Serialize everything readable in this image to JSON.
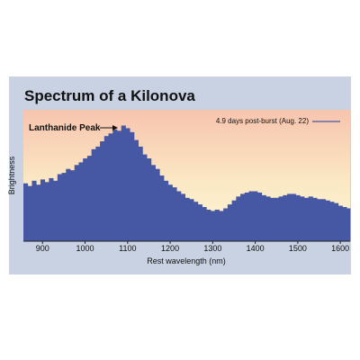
{
  "chart_data": {
    "type": "area",
    "title": "Spectrum of a Kilonova",
    "xlabel": "Rest wavelength (nm)",
    "ylabel": "Brightness",
    "annotation": "Lanthanide Peak",
    "xlim": [
      855,
      1623
    ],
    "xticks": [
      900,
      1000,
      1100,
      1200,
      1300,
      1400,
      1500,
      1600
    ],
    "ylim": [
      0,
      100
    ],
    "x": [
      860,
      870,
      880,
      890,
      900,
      910,
      920,
      930,
      940,
      950,
      960,
      970,
      980,
      990,
      1000,
      1010,
      1020,
      1030,
      1040,
      1050,
      1060,
      1070,
      1080,
      1090,
      1100,
      1110,
      1120,
      1130,
      1140,
      1150,
      1160,
      1170,
      1180,
      1190,
      1200,
      1210,
      1220,
      1230,
      1240,
      1250,
      1260,
      1270,
      1280,
      1290,
      1300,
      1310,
      1320,
      1330,
      1340,
      1350,
      1360,
      1370,
      1380,
      1390,
      1400,
      1410,
      1420,
      1430,
      1440,
      1450,
      1460,
      1470,
      1480,
      1490,
      1500,
      1510,
      1520,
      1530,
      1540,
      1550,
      1560,
      1570,
      1580,
      1590,
      1600,
      1610,
      1620
    ],
    "series": [
      {
        "name": "4.9 days post-burst (Aug. 22)",
        "color": "#4658a3",
        "values": [
          44,
          42,
          46,
          43,
          47,
          45,
          48,
          46,
          51,
          52,
          55,
          54,
          58,
          60,
          63,
          65,
          70,
          72,
          76,
          80,
          82,
          85,
          84,
          88,
          86,
          83,
          77,
          72,
          66,
          63,
          58,
          55,
          50,
          46,
          43,
          41,
          38,
          36,
          33,
          32,
          30,
          28,
          26,
          24,
          23,
          24,
          23,
          25,
          28,
          31,
          34,
          36,
          37,
          38,
          38,
          37,
          35,
          34,
          33,
          33,
          34,
          35,
          36,
          36,
          35,
          34,
          33,
          34,
          33,
          32,
          32,
          31,
          30,
          29,
          27,
          26,
          25
        ]
      }
    ]
  }
}
